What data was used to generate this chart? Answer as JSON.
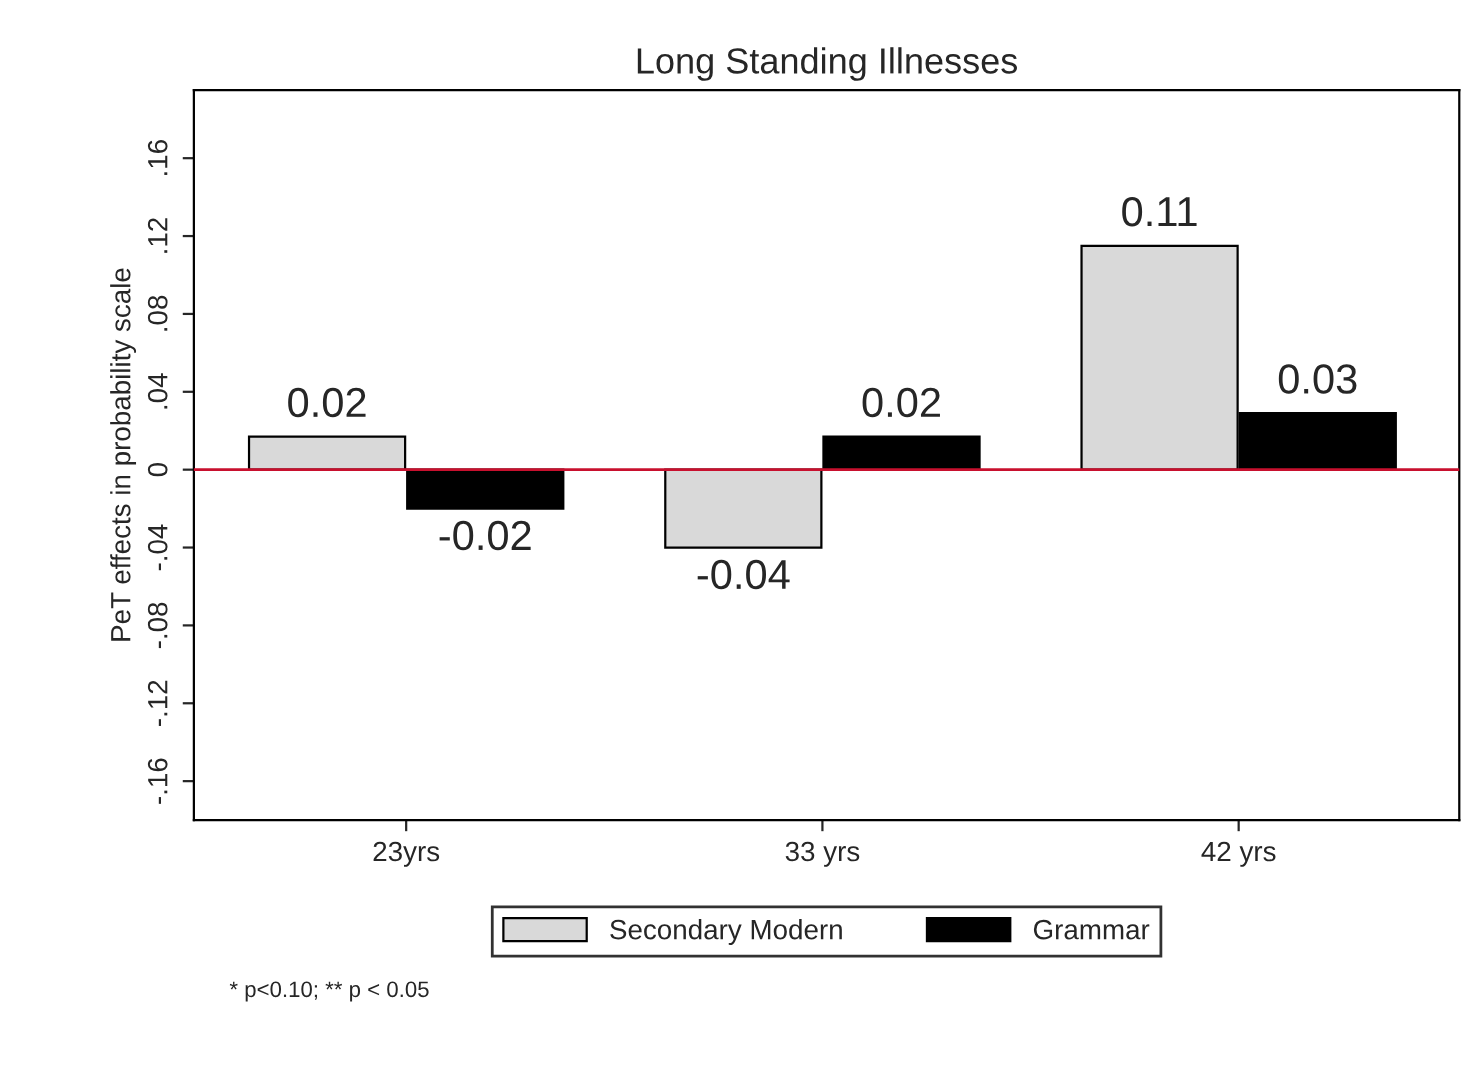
{
  "chart_data": {
    "type": "bar",
    "title": "Long Standing Illnesses",
    "ylabel": "PeT effects in probability scale",
    "categories": [
      "23yrs",
      "33 yrs",
      "42 yrs"
    ],
    "series": [
      {
        "name": "Secondary Modern",
        "color": "#d9d9d9",
        "values": [
          0.017,
          -0.04,
          0.115
        ],
        "value_labels": [
          "0.02",
          "-0.04",
          "0.11"
        ]
      },
      {
        "name": "Grammar",
        "color": "#000000",
        "values": [
          -0.02,
          0.017,
          0.029
        ],
        "value_labels": [
          "-0.02",
          "0.02",
          "0.03"
        ]
      }
    ],
    "ylim": [
      -0.18,
      0.195
    ],
    "yticks": [
      {
        "value": -0.16,
        "label": "-.16"
      },
      {
        "value": -0.12,
        "label": "-.12"
      },
      {
        "value": -0.08,
        "label": "-.08"
      },
      {
        "value": -0.04,
        "label": "-.04"
      },
      0,
      {
        "value": 0.04,
        "label": ".04"
      },
      {
        "value": 0.08,
        "label": ".08"
      },
      {
        "value": 0.12,
        "label": ".12"
      },
      {
        "value": 0.16,
        "label": ".16"
      }
    ],
    "ref_lines": [
      {
        "axis": "y",
        "value": 0,
        "color": "#c8102e"
      }
    ],
    "legend": "bottom",
    "annotations": [
      "* p<0.10; ** p < 0.05"
    ]
  }
}
